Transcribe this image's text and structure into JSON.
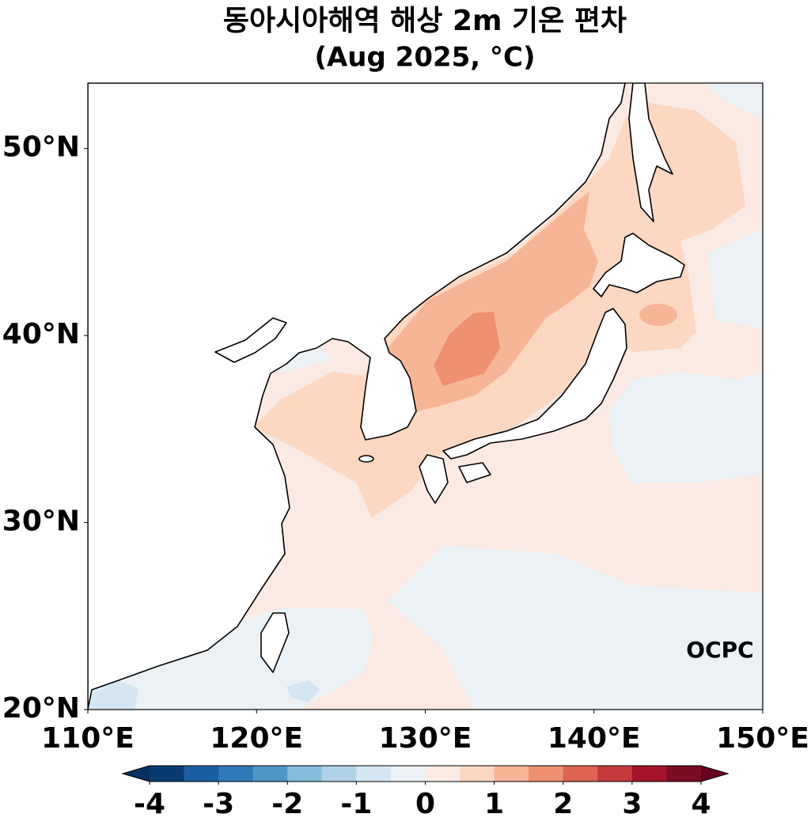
{
  "title": "동아시아해역 해상 2m 기온 편차",
  "subtitle": "(Aug 2025, °C)",
  "map": {
    "lonlim": [
      110,
      150
    ],
    "latlim": [
      20,
      53.5
    ],
    "lonticks": [
      {
        "value": 110,
        "label": "110°E"
      },
      {
        "value": 120,
        "label": "120°E"
      },
      {
        "value": 130,
        "label": "130°E"
      },
      {
        "value": 140,
        "label": "140°E"
      },
      {
        "value": 150,
        "label": "150°E"
      }
    ],
    "latticks": [
      {
        "value": 20,
        "label": "20°N"
      },
      {
        "value": 30,
        "label": "30°N"
      },
      {
        "value": 40,
        "label": "40°N"
      },
      {
        "value": 50,
        "label": "50°N"
      }
    ]
  },
  "colorbar": {
    "lim": [
      -4,
      4
    ],
    "ticks": [
      -4,
      -3,
      -2,
      -1,
      0,
      1,
      2,
      3,
      4
    ],
    "colors": [
      "#0a3b70",
      "#1a5fa1",
      "#2f7ab8",
      "#4f98c6",
      "#86bcdb",
      "#b0d2e7",
      "#d4e6f1",
      "#ebf1f5",
      "#faeae3",
      "#fcd7c2",
      "#f7b597",
      "#ef9072",
      "#de6453",
      "#c53a3b",
      "#a51429",
      "#7d0b22"
    ],
    "extend_colors": [
      "#053061",
      "#67001f"
    ]
  },
  "logo": "OCPC"
}
